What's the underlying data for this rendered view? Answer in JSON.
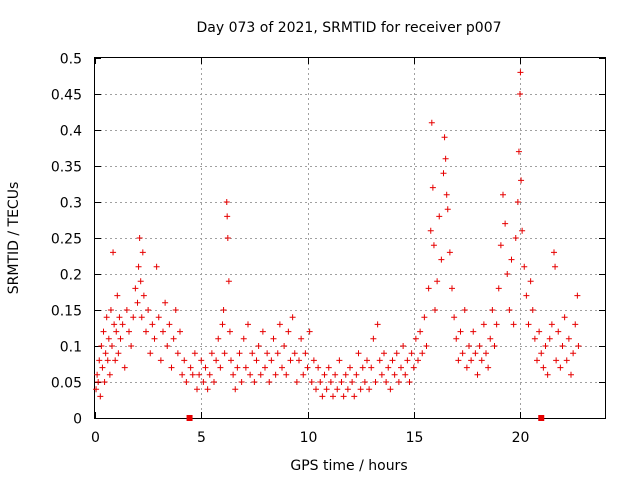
{
  "chart_data": {
    "type": "scatter",
    "title": "Day 073 of 2021, SRMTID for receiver p007",
    "xlabel": "GPS time / hours",
    "ylabel": "SRMTID / TECUs",
    "xlim": [
      0,
      24
    ],
    "ylim": [
      0,
      0.5
    ],
    "x_ticks": [
      0,
      5,
      10,
      15,
      20
    ],
    "x_tick_labels": [
      "0",
      "5",
      "10",
      "15",
      "20"
    ],
    "y_ticks": [
      0,
      0.05,
      0.1,
      0.15,
      0.2,
      0.25,
      0.3,
      0.35,
      0.4,
      0.45,
      0.5
    ],
    "y_tick_labels": [
      "0",
      "0.05",
      "0.1",
      "0.15",
      "0.2",
      "0.25",
      "0.3",
      "0.35",
      "0.4",
      "0.45",
      "0.5"
    ],
    "grid": true,
    "marker": "plus",
    "color": "#e60000",
    "series": [
      {
        "name": "SRMTID",
        "points": [
          [
            0.05,
            0.04
          ],
          [
            0.1,
            0.06
          ],
          [
            0.15,
            0.05
          ],
          [
            0.2,
            0.08
          ],
          [
            0.25,
            0.03
          ],
          [
            0.3,
            0.1
          ],
          [
            0.35,
            0.07
          ],
          [
            0.4,
            0.12
          ],
          [
            0.45,
            0.05
          ],
          [
            0.5,
            0.09
          ],
          [
            0.55,
            0.14
          ],
          [
            0.6,
            0.08
          ],
          [
            0.65,
            0.11
          ],
          [
            0.7,
            0.06
          ],
          [
            0.75,
            0.15
          ],
          [
            0.8,
            0.1
          ],
          [
            0.85,
            0.23
          ],
          [
            0.9,
            0.13
          ],
          [
            0.95,
            0.08
          ],
          [
            1.0,
            0.12
          ],
          [
            1.05,
            0.17
          ],
          [
            1.1,
            0.09
          ],
          [
            1.15,
            0.14
          ],
          [
            1.2,
            0.11
          ],
          [
            1.3,
            0.13
          ],
          [
            1.4,
            0.07
          ],
          [
            1.5,
            0.15
          ],
          [
            1.6,
            0.12
          ],
          [
            1.7,
            0.1
          ],
          [
            1.8,
            0.14
          ],
          [
            1.9,
            0.18
          ],
          [
            2.0,
            0.16
          ],
          [
            2.05,
            0.21
          ],
          [
            2.1,
            0.25
          ],
          [
            2.15,
            0.19
          ],
          [
            2.2,
            0.14
          ],
          [
            2.25,
            0.23
          ],
          [
            2.3,
            0.17
          ],
          [
            2.4,
            0.12
          ],
          [
            2.5,
            0.15
          ],
          [
            2.6,
            0.09
          ],
          [
            2.7,
            0.13
          ],
          [
            2.8,
            0.11
          ],
          [
            2.9,
            0.21
          ],
          [
            3.0,
            0.14
          ],
          [
            3.1,
            0.08
          ],
          [
            3.2,
            0.12
          ],
          [
            3.3,
            0.16
          ],
          [
            3.4,
            0.1
          ],
          [
            3.5,
            0.13
          ],
          [
            3.6,
            0.07
          ],
          [
            3.7,
            0.11
          ],
          [
            3.8,
            0.15
          ],
          [
            3.9,
            0.09
          ],
          [
            4.0,
            0.12
          ],
          [
            4.1,
            0.06
          ],
          [
            4.2,
            0.08
          ],
          [
            4.3,
            0.05
          ],
          [
            4.5,
            0.07
          ],
          [
            4.6,
            0.06
          ],
          [
            4.7,
            0.09
          ],
          [
            4.8,
            0.04
          ],
          [
            4.9,
            0.06
          ],
          [
            5.0,
            0.08
          ],
          [
            5.1,
            0.05
          ],
          [
            5.2,
            0.07
          ],
          [
            5.3,
            0.04
          ],
          [
            5.4,
            0.06
          ],
          [
            5.5,
            0.09
          ],
          [
            5.6,
            0.05
          ],
          [
            5.7,
            0.08
          ],
          [
            5.8,
            0.11
          ],
          [
            5.9,
            0.07
          ],
          [
            6.0,
            0.13
          ],
          [
            6.05,
            0.15
          ],
          [
            6.1,
            0.09
          ],
          [
            6.2,
            0.3
          ],
          [
            6.22,
            0.28
          ],
          [
            6.25,
            0.25
          ],
          [
            6.3,
            0.19
          ],
          [
            6.35,
            0.12
          ],
          [
            6.4,
            0.08
          ],
          [
            6.5,
            0.06
          ],
          [
            6.6,
            0.04
          ],
          [
            6.7,
            0.07
          ],
          [
            6.8,
            0.09
          ],
          [
            6.9,
            0.05
          ],
          [
            7.0,
            0.11
          ],
          [
            7.1,
            0.07
          ],
          [
            7.2,
            0.13
          ],
          [
            7.3,
            0.06
          ],
          [
            7.4,
            0.09
          ],
          [
            7.5,
            0.05
          ],
          [
            7.6,
            0.08
          ],
          [
            7.7,
            0.1
          ],
          [
            7.8,
            0.06
          ],
          [
            7.9,
            0.12
          ],
          [
            8.0,
            0.07
          ],
          [
            8.1,
            0.09
          ],
          [
            8.2,
            0.05
          ],
          [
            8.3,
            0.08
          ],
          [
            8.4,
            0.11
          ],
          [
            8.5,
            0.06
          ],
          [
            8.6,
            0.09
          ],
          [
            8.7,
            0.13
          ],
          [
            8.8,
            0.07
          ],
          [
            8.9,
            0.1
          ],
          [
            9.0,
            0.06
          ],
          [
            9.1,
            0.12
          ],
          [
            9.2,
            0.08
          ],
          [
            9.3,
            0.14
          ],
          [
            9.4,
            0.09
          ],
          [
            9.5,
            0.05
          ],
          [
            9.6,
            0.08
          ],
          [
            9.7,
            0.11
          ],
          [
            9.8,
            0.06
          ],
          [
            9.9,
            0.09
          ],
          [
            10.0,
            0.07
          ],
          [
            10.1,
            0.12
          ],
          [
            10.2,
            0.05
          ],
          [
            10.3,
            0.08
          ],
          [
            10.4,
            0.04
          ],
          [
            10.5,
            0.07
          ],
          [
            10.6,
            0.05
          ],
          [
            10.7,
            0.03
          ],
          [
            10.8,
            0.06
          ],
          [
            10.9,
            0.04
          ],
          [
            11.0,
            0.07
          ],
          [
            11.1,
            0.05
          ],
          [
            11.2,
            0.03
          ],
          [
            11.3,
            0.06
          ],
          [
            11.4,
            0.04
          ],
          [
            11.5,
            0.08
          ],
          [
            11.6,
            0.05
          ],
          [
            11.7,
            0.03
          ],
          [
            11.8,
            0.06
          ],
          [
            11.9,
            0.04
          ],
          [
            12.0,
            0.07
          ],
          [
            12.1,
            0.05
          ],
          [
            12.2,
            0.03
          ],
          [
            12.3,
            0.06
          ],
          [
            12.4,
            0.09
          ],
          [
            12.5,
            0.04
          ],
          [
            12.6,
            0.07
          ],
          [
            12.7,
            0.05
          ],
          [
            12.8,
            0.08
          ],
          [
            12.9,
            0.04
          ],
          [
            13.0,
            0.07
          ],
          [
            13.1,
            0.11
          ],
          [
            13.2,
            0.05
          ],
          [
            13.3,
            0.13
          ],
          [
            13.4,
            0.08
          ],
          [
            13.5,
            0.06
          ],
          [
            13.6,
            0.09
          ],
          [
            13.7,
            0.05
          ],
          [
            13.8,
            0.07
          ],
          [
            13.9,
            0.04
          ],
          [
            14.0,
            0.08
          ],
          [
            14.1,
            0.06
          ],
          [
            14.2,
            0.09
          ],
          [
            14.3,
            0.05
          ],
          [
            14.4,
            0.07
          ],
          [
            14.5,
            0.1
          ],
          [
            14.6,
            0.06
          ],
          [
            14.7,
            0.08
          ],
          [
            14.8,
            0.05
          ],
          [
            14.9,
            0.09
          ],
          [
            15.0,
            0.07
          ],
          [
            15.1,
            0.11
          ],
          [
            15.2,
            0.08
          ],
          [
            15.3,
            0.12
          ],
          [
            15.4,
            0.09
          ],
          [
            15.5,
            0.14
          ],
          [
            15.6,
            0.1
          ],
          [
            15.7,
            0.18
          ],
          [
            15.8,
            0.26
          ],
          [
            15.85,
            0.41
          ],
          [
            15.9,
            0.32
          ],
          [
            15.95,
            0.24
          ],
          [
            16.0,
            0.15
          ],
          [
            16.1,
            0.19
          ],
          [
            16.2,
            0.28
          ],
          [
            16.3,
            0.22
          ],
          [
            16.4,
            0.34
          ],
          [
            16.45,
            0.39
          ],
          [
            16.5,
            0.36
          ],
          [
            16.55,
            0.31
          ],
          [
            16.6,
            0.29
          ],
          [
            16.7,
            0.23
          ],
          [
            16.8,
            0.18
          ],
          [
            16.9,
            0.14
          ],
          [
            17.0,
            0.11
          ],
          [
            17.1,
            0.08
          ],
          [
            17.2,
            0.12
          ],
          [
            17.3,
            0.09
          ],
          [
            17.4,
            0.15
          ],
          [
            17.5,
            0.07
          ],
          [
            17.6,
            0.1
          ],
          [
            17.7,
            0.08
          ],
          [
            17.8,
            0.12
          ],
          [
            17.9,
            0.09
          ],
          [
            18.0,
            0.06
          ],
          [
            18.1,
            0.1
          ],
          [
            18.2,
            0.08
          ],
          [
            18.3,
            0.13
          ],
          [
            18.4,
            0.09
          ],
          [
            18.5,
            0.07
          ],
          [
            18.6,
            0.11
          ],
          [
            18.7,
            0.15
          ],
          [
            18.8,
            0.1
          ],
          [
            18.9,
            0.13
          ],
          [
            19.0,
            0.18
          ],
          [
            19.1,
            0.24
          ],
          [
            19.2,
            0.31
          ],
          [
            19.3,
            0.27
          ],
          [
            19.4,
            0.2
          ],
          [
            19.5,
            0.15
          ],
          [
            19.6,
            0.22
          ],
          [
            19.7,
            0.13
          ],
          [
            19.8,
            0.25
          ],
          [
            19.9,
            0.3
          ],
          [
            19.95,
            0.37
          ],
          [
            20.0,
            0.45
          ],
          [
            20.02,
            0.48
          ],
          [
            20.05,
            0.33
          ],
          [
            20.1,
            0.26
          ],
          [
            20.2,
            0.21
          ],
          [
            20.3,
            0.17
          ],
          [
            20.4,
            0.13
          ],
          [
            20.5,
            0.19
          ],
          [
            20.6,
            0.15
          ],
          [
            20.7,
            0.11
          ],
          [
            20.8,
            0.08
          ],
          [
            20.9,
            0.12
          ],
          [
            21.0,
            0.09
          ],
          [
            21.1,
            0.07
          ],
          [
            21.2,
            0.1
          ],
          [
            21.3,
            0.06
          ],
          [
            21.4,
            0.11
          ],
          [
            21.5,
            0.13
          ],
          [
            21.6,
            0.23
          ],
          [
            21.65,
            0.21
          ],
          [
            21.7,
            0.08
          ],
          [
            21.8,
            0.12
          ],
          [
            21.9,
            0.07
          ],
          [
            22.0,
            0.1
          ],
          [
            22.1,
            0.14
          ],
          [
            22.2,
            0.08
          ],
          [
            22.3,
            0.11
          ],
          [
            22.4,
            0.06
          ],
          [
            22.5,
            0.09
          ],
          [
            22.6,
            0.13
          ],
          [
            22.7,
            0.17
          ],
          [
            22.75,
            0.1
          ]
        ]
      }
    ],
    "gap_markers": [
      4.45,
      21.0
    ]
  }
}
